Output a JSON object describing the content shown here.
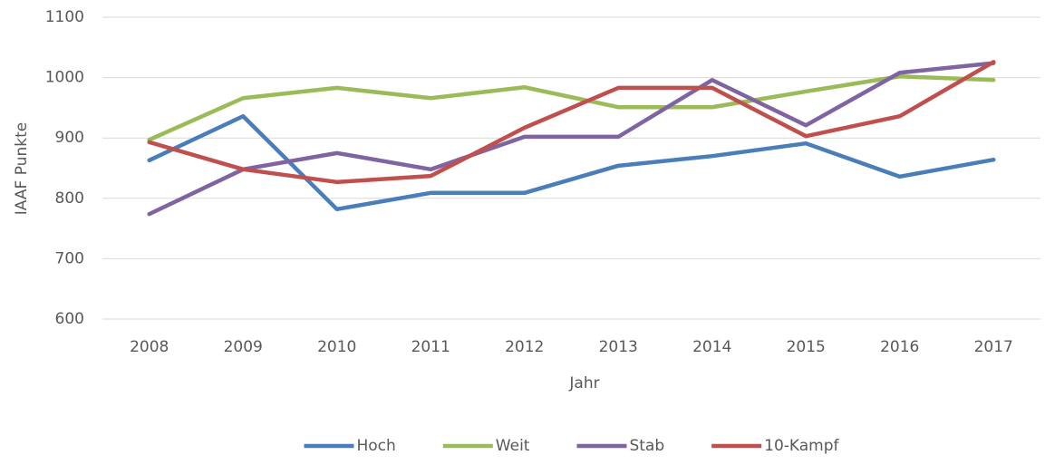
{
  "chart_data": {
    "type": "line",
    "x_label": "Jahr",
    "y_label": "IAAF Punkte",
    "categories": [
      "2008",
      "2009",
      "2010",
      "2011",
      "2012",
      "2013",
      "2014",
      "2015",
      "2016",
      "2017"
    ],
    "series": [
      {
        "name": "Hoch",
        "color": "#4a7ebb",
        "values": [
          863,
          936,
          782,
          809,
          809,
          854,
          870,
          891,
          836,
          864
        ]
      },
      {
        "name": "Weit",
        "color": "#9bbb59",
        "values": [
          897,
          966,
          983,
          966,
          984,
          951,
          951,
          977,
          1002,
          996
        ]
      },
      {
        "name": "Stab",
        "color": "#8064a2",
        "values": [
          774,
          848,
          875,
          848,
          902,
          902,
          996,
          921,
          1008,
          1024
        ]
      },
      {
        "name": "10-Kampf",
        "color": "#c0504d",
        "values": [
          893,
          848,
          827,
          837,
          917,
          983,
          983,
          903,
          936,
          1026
        ]
      }
    ],
    "ylim": [
      600,
      1100
    ],
    "yticks": [
      600,
      700,
      800,
      900,
      1000,
      1100
    ],
    "grid": true,
    "legend": "bottom"
  }
}
